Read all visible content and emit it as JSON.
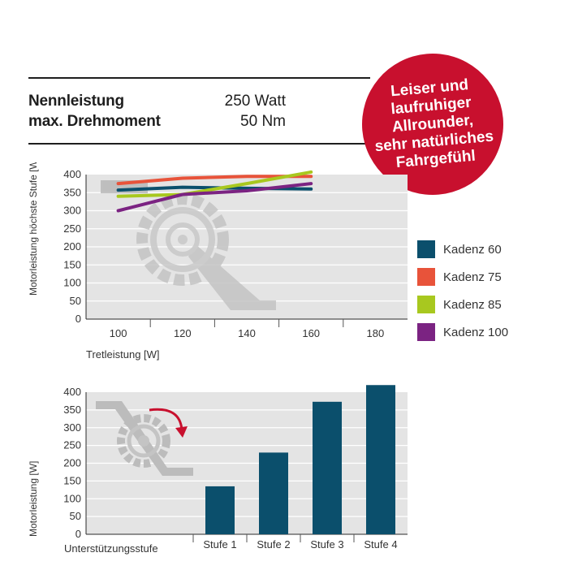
{
  "specs": {
    "rows": [
      {
        "label": "Nennleistung",
        "value": "250 Watt"
      },
      {
        "label": "max. Drehmoment",
        "value": "50 Nm"
      }
    ]
  },
  "badge": {
    "lines": [
      "Leiser und",
      "laufruhiger",
      "Allrounder,",
      "sehr natürliches",
      "Fahrgefühl"
    ],
    "color": "#c8102e"
  },
  "chart_data": [
    {
      "type": "line",
      "title": "",
      "xlabel": "Tretleistung [W]",
      "ylabel": "Motorleistung höchste Stufe [W]",
      "x_ticks": [
        "100",
        "120",
        "140",
        "160",
        "180"
      ],
      "y_ticks": [
        "0",
        "50",
        "100",
        "150",
        "200",
        "250",
        "300",
        "350",
        "400"
      ],
      "xlim": [
        90,
        190
      ],
      "ylim": [
        0,
        400
      ],
      "grid": true,
      "legend_position": "right",
      "series": [
        {
          "name": "Kadenz 60",
          "color": "#0b4f6c",
          "x": [
            100,
            120,
            140,
            160
          ],
          "y": [
            357,
            365,
            362,
            360
          ]
        },
        {
          "name": "Kadenz 75",
          "color": "#e8533a",
          "x": [
            100,
            120,
            140,
            160
          ],
          "y": [
            375,
            390,
            395,
            395
          ]
        },
        {
          "name": "Kadenz 85",
          "color": "#a8c81f",
          "x": [
            100,
            120,
            140,
            160
          ],
          "y": [
            340,
            345,
            375,
            407
          ]
        },
        {
          "name": "Kadenz 100",
          "color": "#7b2382",
          "x": [
            100,
            120,
            140,
            160
          ],
          "y": [
            300,
            345,
            355,
            375
          ]
        }
      ]
    },
    {
      "type": "bar",
      "title": "",
      "xlabel": "Unterstützungsstufe",
      "ylabel": "Motorleistung [W]",
      "categories": [
        "",
        "",
        "Stufe 1",
        "Stufe 2",
        "Stufe 3",
        "Stufe 4"
      ],
      "values": [
        null,
        null,
        135,
        230,
        373,
        420
      ],
      "y_ticks": [
        "0",
        "50",
        "100",
        "150",
        "200",
        "250",
        "300",
        "350",
        "400"
      ],
      "ylim": [
        0,
        400
      ],
      "grid": true,
      "bar_color": "#0b4f6c"
    }
  ],
  "icons": {
    "watermark": "crank-gear-icon",
    "arrow": "rotation-arrow-icon"
  }
}
